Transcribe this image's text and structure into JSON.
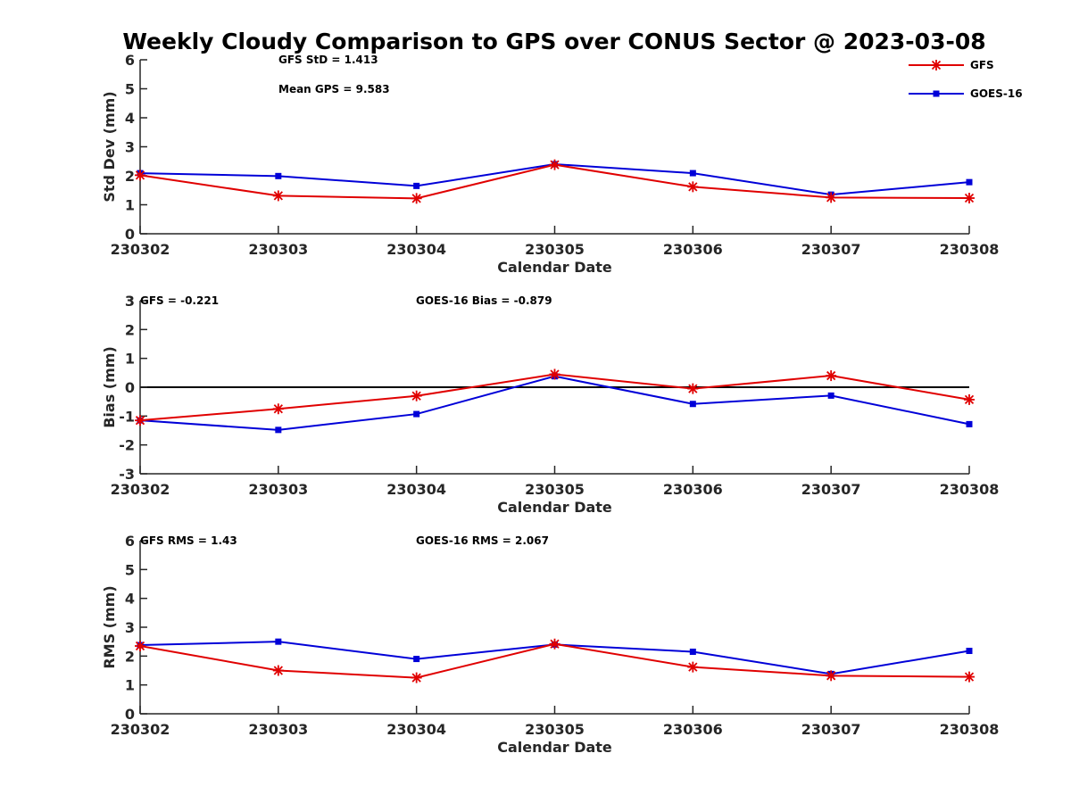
{
  "figure": {
    "title": "Weekly Cloudy Comparison to GPS over CONUS Sector @ 2023-03-08"
  },
  "legend": {
    "placement": "top-right",
    "entries": [
      {
        "name": "GFS",
        "color": "#e00000",
        "marker": "asterisk"
      },
      {
        "name": "GOES-16",
        "color": "#0000d8",
        "marker": "square"
      }
    ]
  },
  "chart_data": [
    {
      "type": "line",
      "xlabel": "Calendar Date",
      "ylabel": "Std Dev (mm)",
      "categories": [
        "230302",
        "230303",
        "230304",
        "230305",
        "230306",
        "230307",
        "230308"
      ],
      "ylim": [
        0,
        6
      ],
      "yticks": [
        "0",
        "1",
        "2",
        "3",
        "4",
        "5",
        "6"
      ],
      "zero_line": false,
      "annotations": [
        "GFS StD = 1.413",
        "Mean GPS = 9.583"
      ],
      "series": [
        {
          "name": "GFS",
          "color": "#e00000",
          "marker": "asterisk",
          "values": [
            2.02,
            1.31,
            1.22,
            2.38,
            1.62,
            1.25,
            1.23
          ]
        },
        {
          "name": "GOES-16",
          "color": "#0000d8",
          "marker": "square",
          "values": [
            2.09,
            1.99,
            1.65,
            2.4,
            2.09,
            1.35,
            1.78
          ]
        }
      ]
    },
    {
      "type": "line",
      "xlabel": "Calendar Date",
      "ylabel": "Bias (mm)",
      "categories": [
        "230302",
        "230303",
        "230304",
        "230305",
        "230306",
        "230307",
        "230308"
      ],
      "ylim": [
        -3,
        3
      ],
      "yticks": [
        "-3",
        "-2",
        "-1",
        "0",
        "1",
        "2",
        "3"
      ],
      "zero_line": true,
      "annotations": [
        "GFS = -0.221",
        "GOES-16 Bias  = -0.879"
      ],
      "series": [
        {
          "name": "GFS",
          "color": "#e00000",
          "marker": "asterisk",
          "values": [
            -1.15,
            -0.75,
            -0.3,
            0.45,
            -0.05,
            0.4,
            -0.43
          ]
        },
        {
          "name": "GOES-16",
          "color": "#0000d8",
          "marker": "square",
          "values": [
            -1.15,
            -1.48,
            -0.93,
            0.38,
            -0.58,
            -0.29,
            -1.28
          ]
        }
      ]
    },
    {
      "type": "line",
      "xlabel": "Calendar Date",
      "ylabel": "RMS (mm)",
      "categories": [
        "230302",
        "230303",
        "230304",
        "230305",
        "230306",
        "230307",
        "230308"
      ],
      "ylim": [
        0,
        6
      ],
      "yticks": [
        "0",
        "1",
        "2",
        "3",
        "4",
        "5",
        "6"
      ],
      "zero_line": false,
      "annotations": [
        "GFS RMS = 1.43",
        "GOES-16 RMS = 2.067"
      ],
      "series": [
        {
          "name": "GFS",
          "color": "#e00000",
          "marker": "asterisk",
          "values": [
            2.35,
            1.5,
            1.25,
            2.42,
            1.62,
            1.32,
            1.28
          ]
        },
        {
          "name": "GOES-16",
          "color": "#0000d8",
          "marker": "square",
          "values": [
            2.38,
            2.5,
            1.9,
            2.4,
            2.15,
            1.38,
            2.18
          ]
        }
      ]
    }
  ]
}
